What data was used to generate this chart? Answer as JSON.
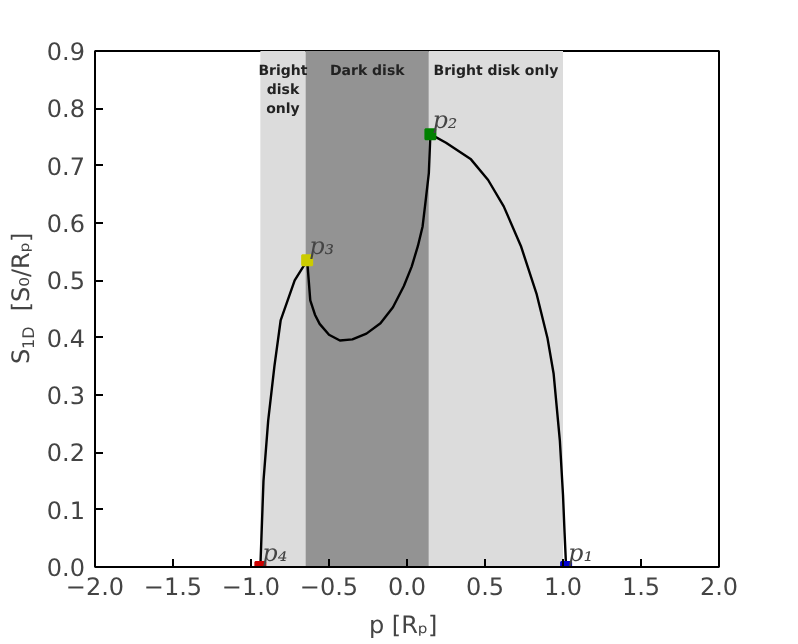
{
  "chart_data": {
    "type": "line",
    "xlabel": "p  [Rₚ]",
    "ylabel": "S$_{1D}$  [S₀/Rₚ]",
    "xlim": [
      -2.0,
      2.0
    ],
    "ylim": [
      0.0,
      0.9
    ],
    "xticks": [
      {
        "value": -2.0,
        "label": "−2.0"
      },
      {
        "value": -1.5,
        "label": "−1.5"
      },
      {
        "value": -1.0,
        "label": "−1.0"
      },
      {
        "value": -0.5,
        "label": "−0.5"
      },
      {
        "value": 0.0,
        "label": "0.0"
      },
      {
        "value": 0.5,
        "label": "0.5"
      },
      {
        "value": 1.0,
        "label": "1.0"
      },
      {
        "value": 1.5,
        "label": "1.5"
      },
      {
        "value": 2.0,
        "label": "2.0"
      }
    ],
    "yticks": [
      {
        "value": 0.0,
        "label": "0.0"
      },
      {
        "value": 0.1,
        "label": "0.1"
      },
      {
        "value": 0.2,
        "label": "0.2"
      },
      {
        "value": 0.3,
        "label": "0.3"
      },
      {
        "value": 0.4,
        "label": "0.4"
      },
      {
        "value": 0.5,
        "label": "0.5"
      },
      {
        "value": 0.6,
        "label": "0.6"
      },
      {
        "value": 0.7,
        "label": "0.7"
      },
      {
        "value": 0.8,
        "label": "0.8"
      },
      {
        "value": 0.9,
        "label": "0.9"
      }
    ],
    "grid": false,
    "series": [
      {
        "color": "#000000",
        "x": [
          -0.94,
          -0.92,
          -0.89,
          -0.85,
          -0.81,
          -0.72,
          -0.64,
          -0.63,
          -0.62,
          -0.59,
          -0.56,
          -0.5,
          -0.43,
          -0.35,
          -0.26,
          -0.17,
          -0.09,
          -0.02,
          0.03,
          0.07,
          0.1,
          0.12,
          0.14,
          0.15,
          0.25,
          0.41,
          0.52,
          0.62,
          0.73,
          0.83,
          0.9,
          0.94,
          0.98,
          1.0,
          1.01,
          1.02
        ],
        "values": [
          0.0,
          0.15,
          0.255,
          0.35,
          0.43,
          0.5,
          0.535,
          0.5,
          0.465,
          0.44,
          0.424,
          0.405,
          0.395,
          0.397,
          0.407,
          0.425,
          0.453,
          0.49,
          0.524,
          0.56,
          0.594,
          0.64,
          0.687,
          0.755,
          0.74,
          0.711,
          0.675,
          0.629,
          0.56,
          0.477,
          0.4,
          0.337,
          0.22,
          0.126,
          0.06,
          0.0
        ]
      },
      {
        "type": "scatter",
        "marker": "square",
        "x": [
          1.02,
          0.15,
          -0.64,
          -0.94
        ],
        "values": [
          0.0,
          0.755,
          0.535,
          0.0
        ],
        "colors": [
          "#0000cc",
          "#008000",
          "#cccc00",
          "#cc0000"
        ]
      }
    ],
    "bands": [
      {
        "axis": "x",
        "from": -0.94,
        "to": -0.65,
        "label": "Bright disk only",
        "color": "#dcdcdc"
      },
      {
        "axis": "x",
        "from": -0.65,
        "to": 0.14,
        "label": "Dark disk",
        "color": "#939393"
      },
      {
        "axis": "x",
        "from": 0.14,
        "to": 1.0,
        "label": "Bright disk only",
        "color": "#dcdcdc"
      }
    ],
    "annotations": [
      {
        "text": "p₁",
        "x": 1.02,
        "y": 0.0
      },
      {
        "text": "p₂",
        "x": 0.15,
        "y": 0.755
      },
      {
        "text": "p₃",
        "x": -0.64,
        "y": 0.535
      },
      {
        "text": "p₄",
        "x": -0.94,
        "y": 0.0
      }
    ]
  }
}
